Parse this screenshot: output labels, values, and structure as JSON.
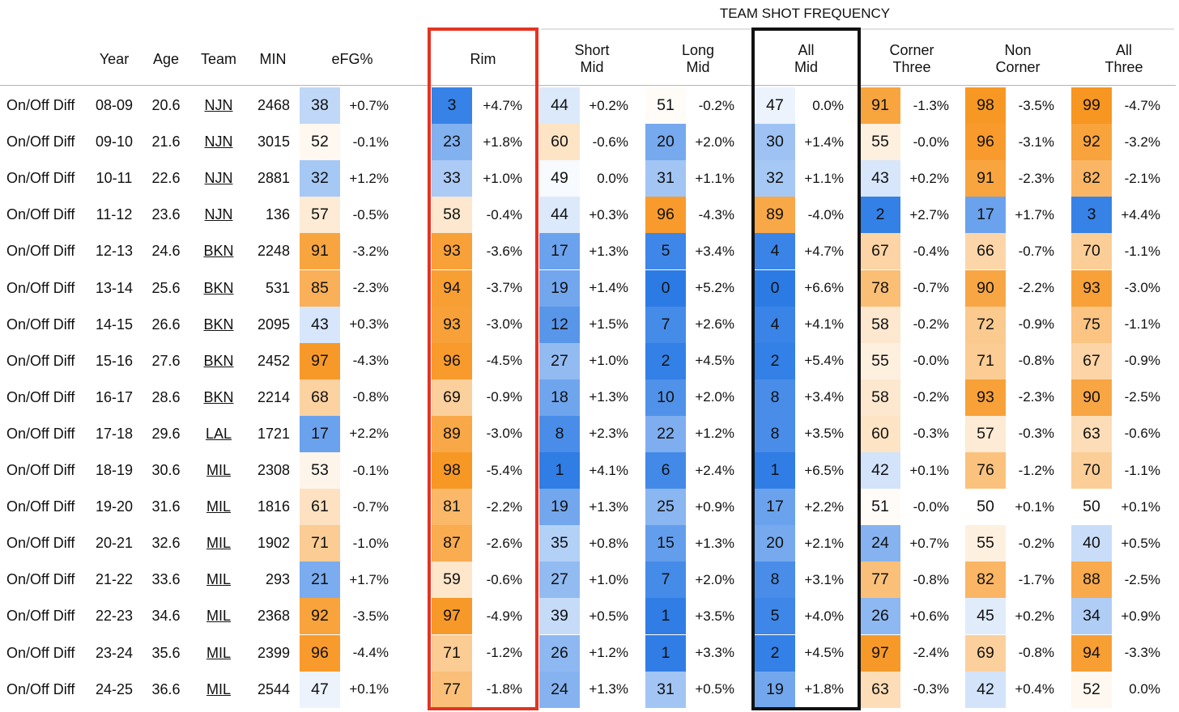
{
  "group_title": "TEAM SHOT FREQUENCY",
  "headers": {
    "year": "Year",
    "age": "Age",
    "team": "Team",
    "min": "MIN",
    "efg": "eFG%",
    "rim": "Rim",
    "short_mid": "Short\nMid",
    "long_mid": "Long\nMid",
    "all_mid": "All\nMid",
    "corner_three": "Corner\nThree",
    "non_corner": "Non\nCorner",
    "all_three": "All\nThree"
  },
  "colors": {
    "orange_strong": "#f7941d",
    "orange_light": "#fde7c8",
    "blue_strong": "#2c7be5",
    "blue_light": "#dce9fb",
    "rim_box": "#e53322",
    "allmid_box": "#111111"
  },
  "rows": [
    {
      "label": "On/Off Diff",
      "year": "08-09",
      "age": "20.6",
      "team": "NJN",
      "min": "2468",
      "efg": [
        "38",
        "+0.7%"
      ],
      "rim": [
        "3",
        "+4.7%"
      ],
      "short_mid": [
        "44",
        "+0.2%"
      ],
      "long_mid": [
        "51",
        "-0.2%"
      ],
      "all_mid": [
        "47",
        "0.0%"
      ],
      "corner_three": [
        "91",
        "-1.3%"
      ],
      "non_corner": [
        "98",
        "-3.5%"
      ],
      "all_three": [
        "99",
        "-4.7%"
      ]
    },
    {
      "label": "On/Off Diff",
      "year": "09-10",
      "age": "21.6",
      "team": "NJN",
      "min": "3015",
      "efg": [
        "52",
        "-0.1%"
      ],
      "rim": [
        "23",
        "+1.8%"
      ],
      "short_mid": [
        "60",
        "-0.6%"
      ],
      "long_mid": [
        "20",
        "+2.0%"
      ],
      "all_mid": [
        "30",
        "+1.4%"
      ],
      "corner_three": [
        "55",
        "-0.0%"
      ],
      "non_corner": [
        "96",
        "-3.1%"
      ],
      "all_three": [
        "92",
        "-3.2%"
      ]
    },
    {
      "label": "On/Off Diff",
      "year": "10-11",
      "age": "22.6",
      "team": "NJN",
      "min": "2881",
      "efg": [
        "32",
        "+1.2%"
      ],
      "rim": [
        "33",
        "+1.0%"
      ],
      "short_mid": [
        "49",
        "0.0%"
      ],
      "long_mid": [
        "31",
        "+1.1%"
      ],
      "all_mid": [
        "32",
        "+1.1%"
      ],
      "corner_three": [
        "43",
        "+0.2%"
      ],
      "non_corner": [
        "91",
        "-2.3%"
      ],
      "all_three": [
        "82",
        "-2.1%"
      ]
    },
    {
      "label": "On/Off Diff",
      "year": "11-12",
      "age": "23.6",
      "team": "NJN",
      "min": "136",
      "efg": [
        "57",
        "-0.5%"
      ],
      "rim": [
        "58",
        "-0.4%"
      ],
      "short_mid": [
        "44",
        "+0.3%"
      ],
      "long_mid": [
        "96",
        "-4.3%"
      ],
      "all_mid": [
        "89",
        "-4.0%"
      ],
      "corner_three": [
        "2",
        "+2.7%"
      ],
      "non_corner": [
        "17",
        "+1.7%"
      ],
      "all_three": [
        "3",
        "+4.4%"
      ]
    },
    {
      "label": "On/Off Diff",
      "year": "12-13",
      "age": "24.6",
      "team": "BKN",
      "min": "2248",
      "efg": [
        "91",
        "-3.2%"
      ],
      "rim": [
        "93",
        "-3.6%"
      ],
      "short_mid": [
        "17",
        "+1.3%"
      ],
      "long_mid": [
        "5",
        "+3.4%"
      ],
      "all_mid": [
        "4",
        "+4.7%"
      ],
      "corner_three": [
        "67",
        "-0.4%"
      ],
      "non_corner": [
        "66",
        "-0.7%"
      ],
      "all_three": [
        "70",
        "-1.1%"
      ]
    },
    {
      "label": "On/Off Diff",
      "year": "13-14",
      "age": "25.6",
      "team": "BKN",
      "min": "531",
      "efg": [
        "85",
        "-2.3%"
      ],
      "rim": [
        "94",
        "-3.7%"
      ],
      "short_mid": [
        "19",
        "+1.4%"
      ],
      "long_mid": [
        "0",
        "+5.2%"
      ],
      "all_mid": [
        "0",
        "+6.6%"
      ],
      "corner_three": [
        "78",
        "-0.7%"
      ],
      "non_corner": [
        "90",
        "-2.2%"
      ],
      "all_three": [
        "93",
        "-3.0%"
      ]
    },
    {
      "label": "On/Off Diff",
      "year": "14-15",
      "age": "26.6",
      "team": "BKN",
      "min": "2095",
      "efg": [
        "43",
        "+0.3%"
      ],
      "rim": [
        "93",
        "-3.0%"
      ],
      "short_mid": [
        "12",
        "+1.5%"
      ],
      "long_mid": [
        "7",
        "+2.6%"
      ],
      "all_mid": [
        "4",
        "+4.1%"
      ],
      "corner_three": [
        "58",
        "-0.2%"
      ],
      "non_corner": [
        "72",
        "-0.9%"
      ],
      "all_three": [
        "75",
        "-1.1%"
      ]
    },
    {
      "label": "On/Off Diff",
      "year": "15-16",
      "age": "27.6",
      "team": "BKN",
      "min": "2452",
      "efg": [
        "97",
        "-4.3%"
      ],
      "rim": [
        "96",
        "-4.5%"
      ],
      "short_mid": [
        "27",
        "+1.0%"
      ],
      "long_mid": [
        "2",
        "+4.5%"
      ],
      "all_mid": [
        "2",
        "+5.4%"
      ],
      "corner_three": [
        "55",
        "-0.0%"
      ],
      "non_corner": [
        "71",
        "-0.8%"
      ],
      "all_three": [
        "67",
        "-0.9%"
      ]
    },
    {
      "label": "On/Off Diff",
      "year": "16-17",
      "age": "28.6",
      "team": "BKN",
      "min": "2214",
      "efg": [
        "68",
        "-0.8%"
      ],
      "rim": [
        "69",
        "-0.9%"
      ],
      "short_mid": [
        "18",
        "+1.3%"
      ],
      "long_mid": [
        "10",
        "+2.0%"
      ],
      "all_mid": [
        "8",
        "+3.4%"
      ],
      "corner_three": [
        "58",
        "-0.2%"
      ],
      "non_corner": [
        "93",
        "-2.3%"
      ],
      "all_three": [
        "90",
        "-2.5%"
      ]
    },
    {
      "label": "On/Off Diff",
      "year": "17-18",
      "age": "29.6",
      "team": "LAL",
      "min": "1721",
      "efg": [
        "17",
        "+2.2%"
      ],
      "rim": [
        "89",
        "-3.0%"
      ],
      "short_mid": [
        "8",
        "+2.3%"
      ],
      "long_mid": [
        "22",
        "+1.2%"
      ],
      "all_mid": [
        "8",
        "+3.5%"
      ],
      "corner_three": [
        "60",
        "-0.3%"
      ],
      "non_corner": [
        "57",
        "-0.3%"
      ],
      "all_three": [
        "63",
        "-0.6%"
      ]
    },
    {
      "label": "On/Off Diff",
      "year": "18-19",
      "age": "30.6",
      "team": "MIL",
      "min": "2308",
      "efg": [
        "53",
        "-0.1%"
      ],
      "rim": [
        "98",
        "-5.4%"
      ],
      "short_mid": [
        "1",
        "+4.1%"
      ],
      "long_mid": [
        "6",
        "+2.4%"
      ],
      "all_mid": [
        "1",
        "+6.5%"
      ],
      "corner_three": [
        "42",
        "+0.1%"
      ],
      "non_corner": [
        "76",
        "-1.2%"
      ],
      "all_three": [
        "70",
        "-1.1%"
      ]
    },
    {
      "label": "On/Off Diff",
      "year": "19-20",
      "age": "31.6",
      "team": "MIL",
      "min": "1816",
      "efg": [
        "61",
        "-0.7%"
      ],
      "rim": [
        "81",
        "-2.2%"
      ],
      "short_mid": [
        "19",
        "+1.3%"
      ],
      "long_mid": [
        "25",
        "+0.9%"
      ],
      "all_mid": [
        "17",
        "+2.2%"
      ],
      "corner_three": [
        "51",
        "-0.0%"
      ],
      "non_corner": [
        "50",
        "+0.1%"
      ],
      "all_three": [
        "50",
        "+0.1%"
      ]
    },
    {
      "label": "On/Off Diff",
      "year": "20-21",
      "age": "32.6",
      "team": "MIL",
      "min": "1902",
      "efg": [
        "71",
        "-1.0%"
      ],
      "rim": [
        "87",
        "-2.6%"
      ],
      "short_mid": [
        "35",
        "+0.8%"
      ],
      "long_mid": [
        "15",
        "+1.3%"
      ],
      "all_mid": [
        "20",
        "+2.1%"
      ],
      "corner_three": [
        "24",
        "+0.7%"
      ],
      "non_corner": [
        "55",
        "-0.2%"
      ],
      "all_three": [
        "40",
        "+0.5%"
      ]
    },
    {
      "label": "On/Off Diff",
      "year": "21-22",
      "age": "33.6",
      "team": "MIL",
      "min": "293",
      "efg": [
        "21",
        "+1.7%"
      ],
      "rim": [
        "59",
        "-0.6%"
      ],
      "short_mid": [
        "27",
        "+1.0%"
      ],
      "long_mid": [
        "7",
        "+2.0%"
      ],
      "all_mid": [
        "8",
        "+3.1%"
      ],
      "corner_three": [
        "77",
        "-0.8%"
      ],
      "non_corner": [
        "82",
        "-1.7%"
      ],
      "all_three": [
        "88",
        "-2.5%"
      ]
    },
    {
      "label": "On/Off Diff",
      "year": "22-23",
      "age": "34.6",
      "team": "MIL",
      "min": "2368",
      "efg": [
        "92",
        "-3.5%"
      ],
      "rim": [
        "97",
        "-4.9%"
      ],
      "short_mid": [
        "39",
        "+0.5%"
      ],
      "long_mid": [
        "1",
        "+3.5%"
      ],
      "all_mid": [
        "5",
        "+4.0%"
      ],
      "corner_three": [
        "26",
        "+0.6%"
      ],
      "non_corner": [
        "45",
        "+0.2%"
      ],
      "all_three": [
        "34",
        "+0.9%"
      ]
    },
    {
      "label": "On/Off Diff",
      "year": "23-24",
      "age": "35.6",
      "team": "MIL",
      "min": "2399",
      "efg": [
        "96",
        "-4.4%"
      ],
      "rim": [
        "71",
        "-1.2%"
      ],
      "short_mid": [
        "26",
        "+1.2%"
      ],
      "long_mid": [
        "1",
        "+3.3%"
      ],
      "all_mid": [
        "2",
        "+4.5%"
      ],
      "corner_three": [
        "97",
        "-2.4%"
      ],
      "non_corner": [
        "69",
        "-0.8%"
      ],
      "all_three": [
        "94",
        "-3.3%"
      ]
    },
    {
      "label": "On/Off Diff",
      "year": "24-25",
      "age": "36.6",
      "team": "MIL",
      "min": "2544",
      "efg": [
        "47",
        "+0.1%"
      ],
      "rim": [
        "77",
        "-1.8%"
      ],
      "short_mid": [
        "24",
        "+1.3%"
      ],
      "long_mid": [
        "31",
        "+0.5%"
      ],
      "all_mid": [
        "19",
        "+1.8%"
      ],
      "corner_three": [
        "63",
        "-0.3%"
      ],
      "non_corner": [
        "42",
        "+0.4%"
      ],
      "all_three": [
        "52",
        "0.0%"
      ]
    }
  ]
}
